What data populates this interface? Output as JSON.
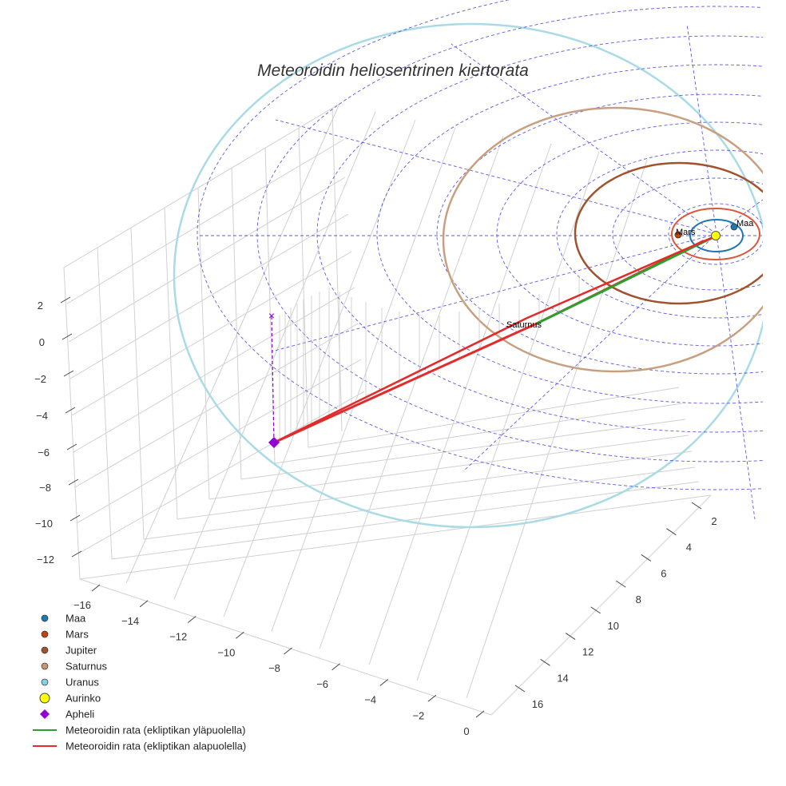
{
  "chart_data": {
    "type": "scatter3d",
    "title": "Meteoroidin heliosentrinen kiertorata",
    "x_ticks": [
      "−16",
      "−14",
      "−12",
      "−10",
      "−8",
      "−6",
      "−4",
      "−2",
      "0"
    ],
    "y_ticks": [
      "2",
      "4",
      "6",
      "8",
      "10",
      "12",
      "14",
      "16"
    ],
    "z_ticks": [
      "2",
      "0",
      "−2",
      "−4",
      "−6",
      "−8",
      "−10",
      "−12"
    ],
    "planet_labels": {
      "maa": "Maa",
      "mars": "Mars",
      "saturnus": "Saturnus"
    },
    "legend": [
      {
        "label": "Maa",
        "marker": "circle",
        "color": "#1f77b4"
      },
      {
        "label": "Mars",
        "marker": "circle",
        "color": "#c1440e"
      },
      {
        "label": "Jupiter",
        "marker": "circle",
        "color": "#a0522d"
      },
      {
        "label": "Saturnus",
        "marker": "circle",
        "color": "#c8956c"
      },
      {
        "label": "Uranus",
        "marker": "circle",
        "color": "#87ceeb"
      },
      {
        "label": "Aurinko",
        "marker": "circle-large",
        "color": "#ffff00"
      },
      {
        "label": "Apheli",
        "marker": "diamond",
        "color": "#9400d3"
      },
      {
        "label": "Meteoroidin rata (ekliptikan yläpuolella)",
        "marker": "line",
        "color": "#2ca02c"
      },
      {
        "label": "Meteoroidin rata (ekliptikan alapuolella)",
        "marker": "line",
        "color": "#e32b2b"
      }
    ],
    "aphelion_z": -6,
    "orbit_colors": {
      "maa": "#1f77b4",
      "mars": "#d9573a",
      "jupiter": "#a0522d",
      "saturnus": "#c8a080",
      "uranus": "#a8dbe6",
      "grid": "#3333dd"
    }
  }
}
